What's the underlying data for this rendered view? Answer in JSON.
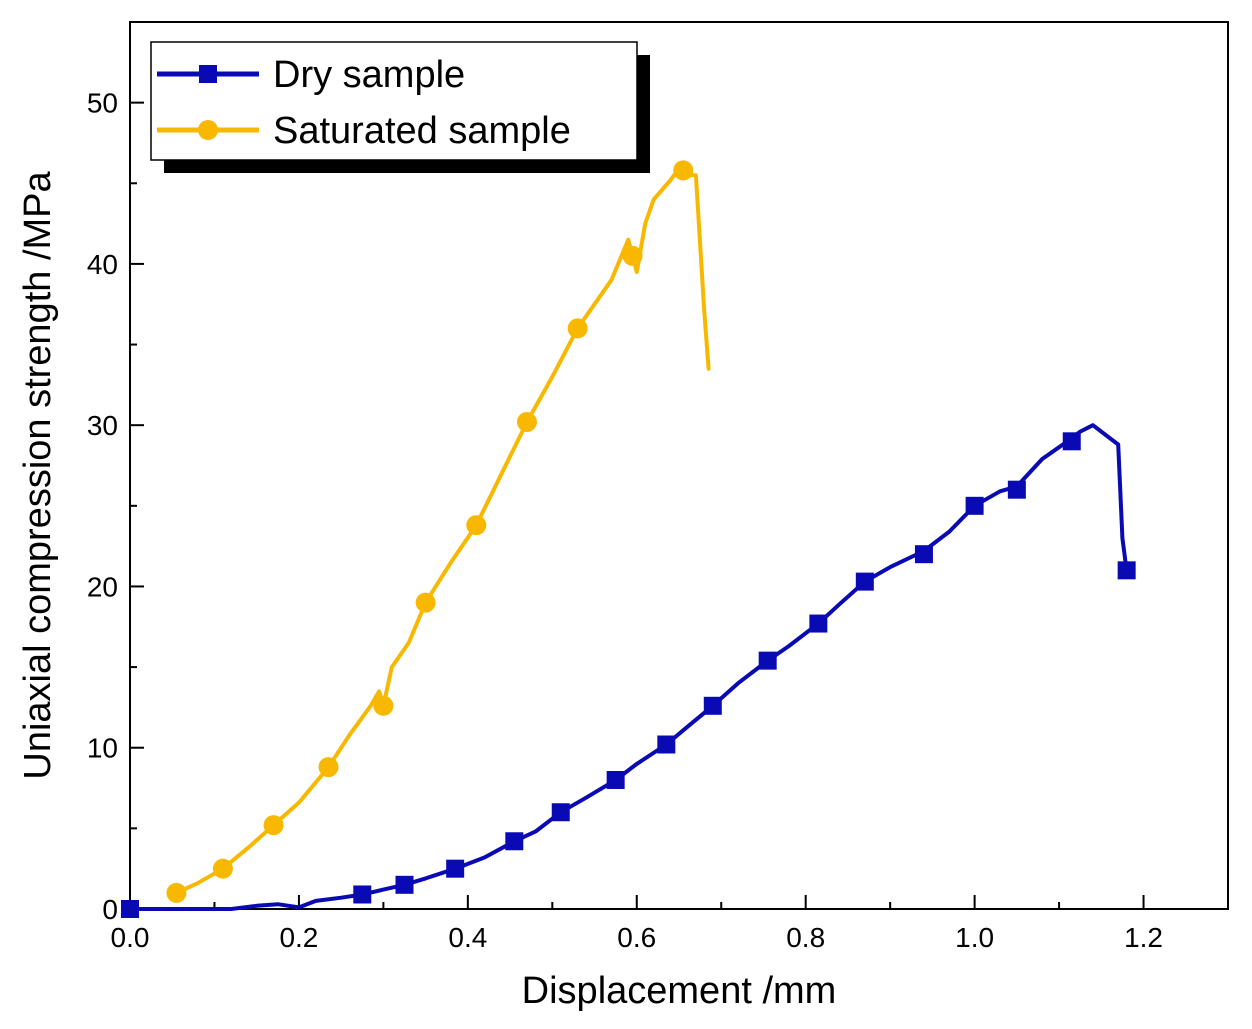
{
  "chart_data": {
    "type": "line",
    "title": "",
    "xlabel": "Displacement /mm",
    "ylabel": "Uniaxial compression strength /MPa",
    "xlim": [
      0.0,
      1.3
    ],
    "ylim": [
      0,
      55
    ],
    "x_ticks": [
      0.0,
      0.2,
      0.4,
      0.6,
      0.8,
      1.0,
      1.2
    ],
    "x_tick_labels": [
      "0.0",
      "0.2",
      "0.4",
      "0.6",
      "0.8",
      "1.0",
      "1.2"
    ],
    "y_ticks": [
      0,
      10,
      20,
      30,
      40,
      50
    ],
    "y_tick_labels": [
      "0",
      "10",
      "20",
      "30",
      "40",
      "50"
    ],
    "legend_position": "top-left",
    "series": [
      {
        "name": "Dry sample",
        "color": "#0a0ab4",
        "marker": "square",
        "x": [
          0.0,
          0.05,
          0.1,
          0.12,
          0.15,
          0.175,
          0.2,
          0.22,
          0.25,
          0.275,
          0.3,
          0.325,
          0.35,
          0.385,
          0.42,
          0.455,
          0.48,
          0.51,
          0.54,
          0.575,
          0.6,
          0.635,
          0.66,
          0.69,
          0.72,
          0.755,
          0.78,
          0.815,
          0.84,
          0.87,
          0.9,
          0.94,
          0.97,
          1.0,
          1.03,
          1.05,
          1.08,
          1.11,
          1.125,
          1.14,
          1.16,
          1.17,
          1.175,
          1.18
        ],
        "y": [
          0.0,
          0.0,
          0.0,
          0.0,
          0.2,
          0.3,
          0.1,
          0.5,
          0.7,
          0.9,
          1.2,
          1.5,
          1.9,
          2.5,
          3.2,
          4.2,
          4.8,
          6.0,
          6.9,
          8.0,
          9.0,
          10.2,
          11.3,
          12.6,
          14.0,
          15.4,
          16.3,
          17.7,
          18.9,
          20.3,
          21.2,
          22.2,
          23.4,
          25.0,
          25.9,
          26.2,
          27.9,
          29.0,
          29.6,
          30.0,
          29.2,
          28.8,
          23.0,
          21.0
        ],
        "marker_x": [
          0.0,
          0.275,
          0.325,
          0.385,
          0.455,
          0.51,
          0.575,
          0.635,
          0.69,
          0.755,
          0.815,
          0.87,
          0.94,
          1.0,
          1.05,
          1.115,
          1.18
        ],
        "marker_y": [
          0.0,
          0.9,
          1.5,
          2.5,
          4.2,
          6.0,
          8.0,
          10.2,
          12.6,
          15.4,
          17.7,
          20.3,
          22.0,
          25.0,
          26.0,
          29.0,
          21.0
        ]
      },
      {
        "name": "Saturated sample",
        "color": "#f8b800",
        "marker": "circle",
        "x": [
          0.055,
          0.08,
          0.11,
          0.14,
          0.17,
          0.2,
          0.235,
          0.26,
          0.285,
          0.295,
          0.3,
          0.31,
          0.33,
          0.35,
          0.38,
          0.41,
          0.44,
          0.47,
          0.5,
          0.53,
          0.55,
          0.57,
          0.59,
          0.6,
          0.61,
          0.62,
          0.64,
          0.655,
          0.66,
          0.67,
          0.68,
          0.685
        ],
        "y": [
          1.0,
          1.6,
          2.5,
          3.8,
          5.2,
          6.6,
          8.8,
          10.8,
          12.6,
          13.5,
          12.6,
          15.0,
          16.5,
          19.0,
          21.5,
          23.8,
          27.0,
          30.2,
          33.0,
          36.0,
          37.5,
          39.0,
          41.5,
          39.5,
          42.5,
          44.0,
          45.2,
          46.3,
          45.5,
          45.5,
          37.0,
          33.5
        ],
        "marker_x": [
          0.055,
          0.11,
          0.17,
          0.235,
          0.3,
          0.35,
          0.41,
          0.47,
          0.53,
          0.595,
          0.655
        ],
        "marker_y": [
          1.0,
          2.5,
          5.2,
          8.8,
          12.6,
          19.0,
          23.8,
          30.2,
          36.0,
          40.5,
          45.8
        ]
      }
    ]
  }
}
